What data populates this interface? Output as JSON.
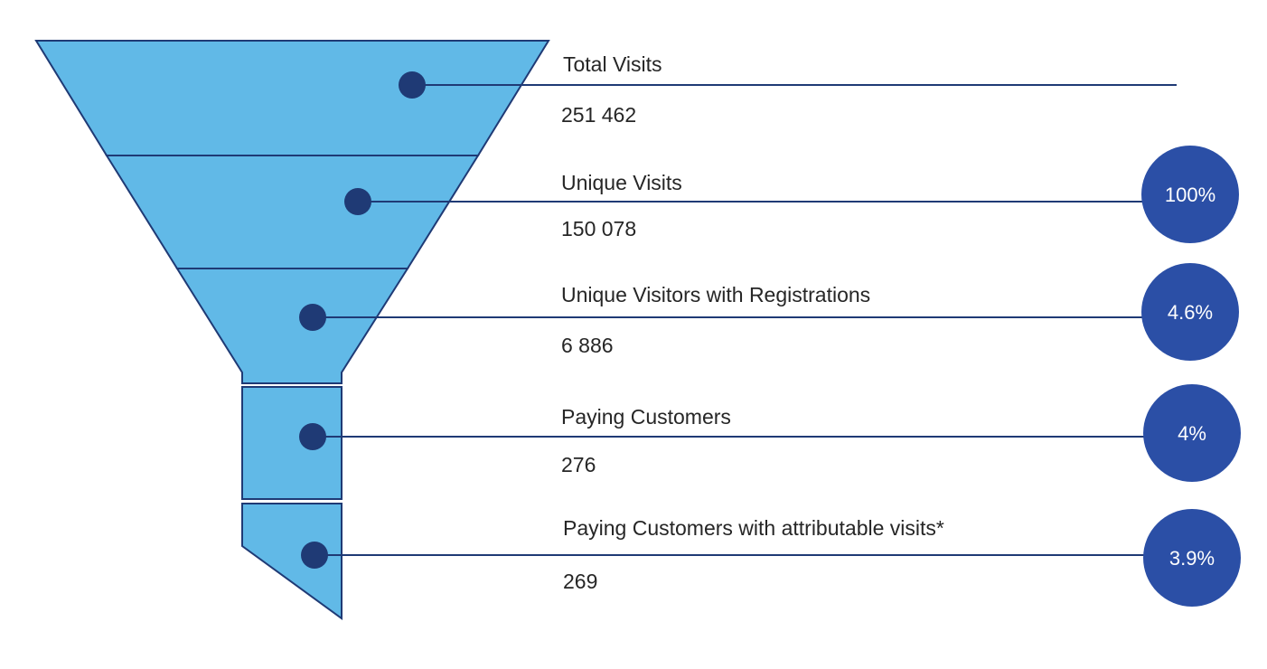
{
  "colors": {
    "funnel_fill": "#61B9E7",
    "funnel_stroke": "#1F3A75",
    "dot_fill": "#1F3A75",
    "connector_line": "#1F3A75",
    "badge_fill": "#2B4FA6",
    "badge_text": "#FFFFFF",
    "text": "#262626"
  },
  "stages": [
    {
      "label": "Total Visits",
      "value": "251 462",
      "percent": ""
    },
    {
      "label": "Unique Visits",
      "value": "150 078",
      "percent": "100%"
    },
    {
      "label": "Unique Visitors with Registrations",
      "value": "6 886",
      "percent": "4.6%"
    },
    {
      "label": "Paying Customers",
      "value": "276",
      "percent": "4%"
    },
    {
      "label": "Paying Customers with attributable visits*",
      "value": "269",
      "percent": "3.9%"
    }
  ]
}
